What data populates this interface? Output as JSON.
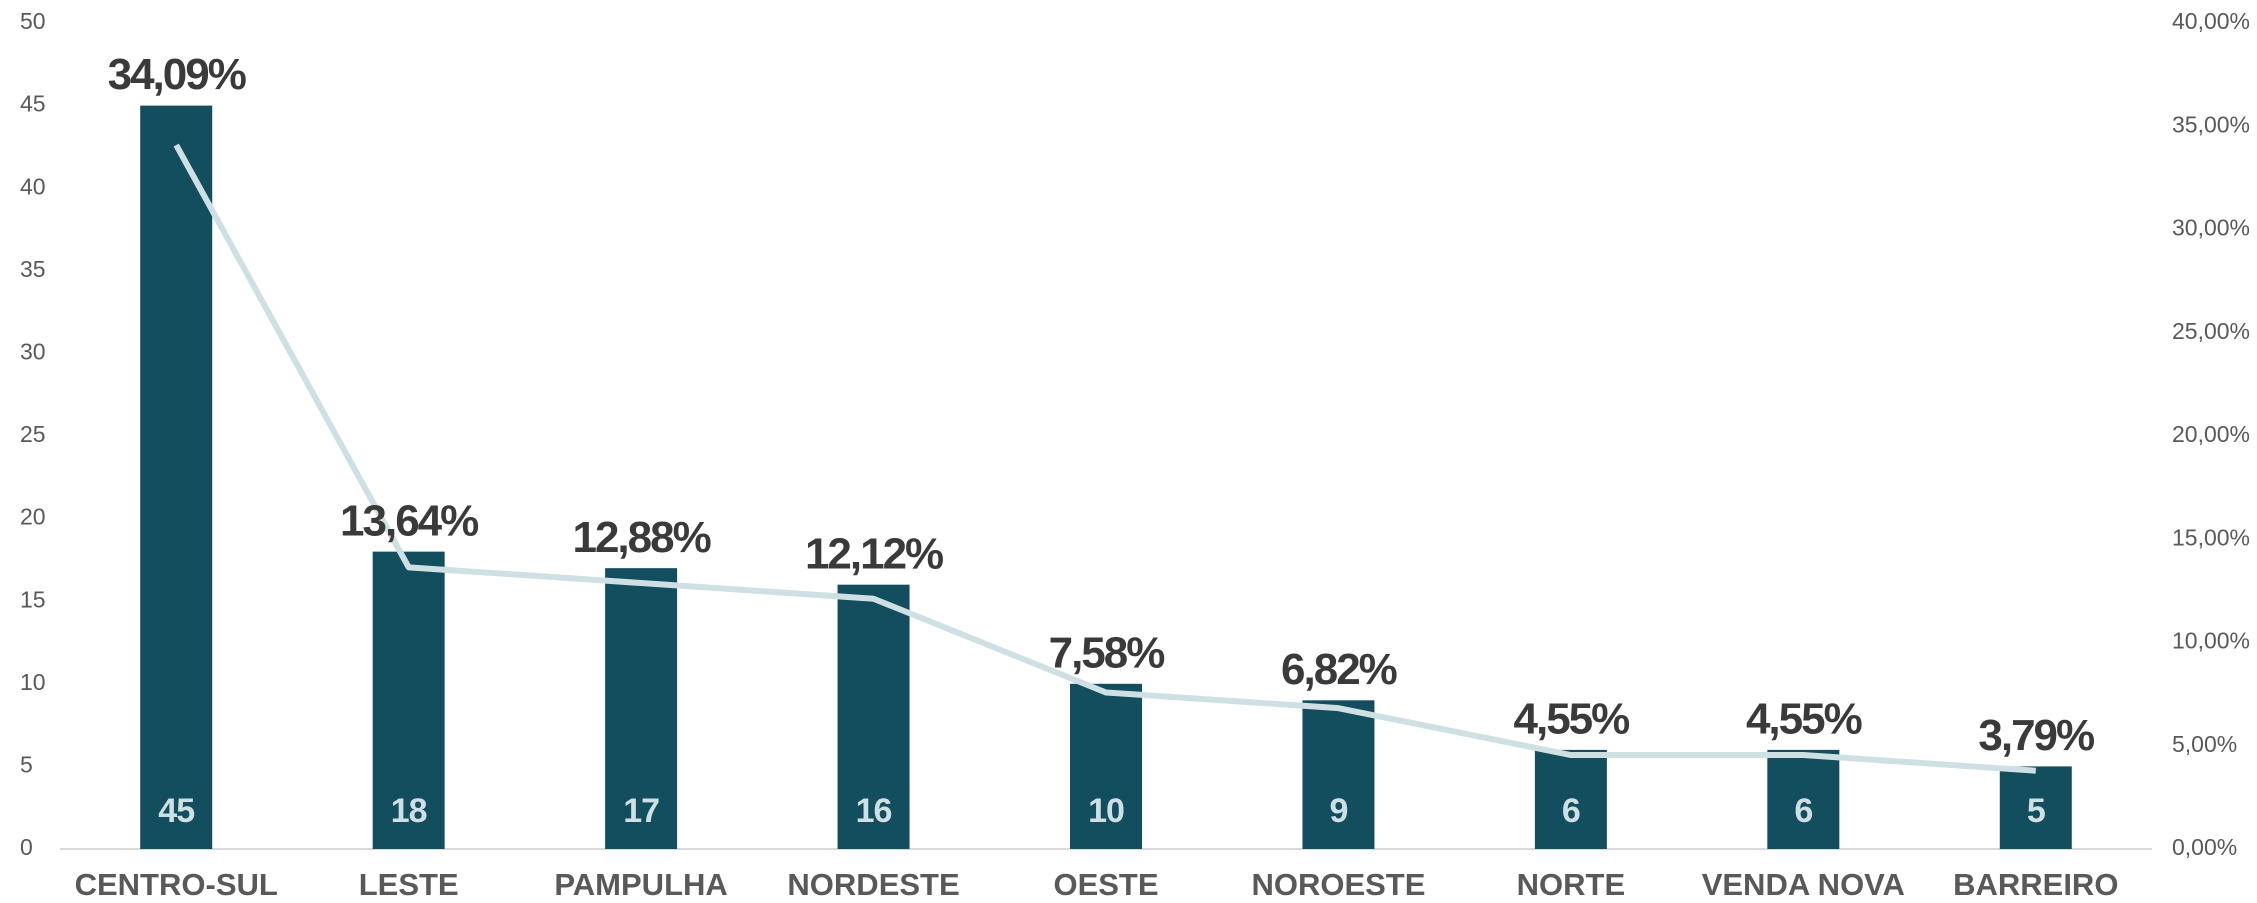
{
  "chart_data": {
    "type": "bar",
    "categories": [
      "CENTRO-SUL",
      "LESTE",
      "PAMPULHA",
      "NORDESTE",
      "OESTE",
      "NOROESTE",
      "NORTE",
      "VENDA NOVA",
      "BARREIRO"
    ],
    "series": [
      {
        "type": "bar",
        "color": "#134e5e",
        "label_color": "#cfe0e4",
        "values": [
          45,
          18,
          17,
          16,
          10,
          9,
          6,
          6,
          5
        ]
      },
      {
        "type": "line",
        "axis": "y2",
        "color": "#cfe0e4",
        "values": [
          34.09,
          13.64,
          12.88,
          12.12,
          7.58,
          6.82,
          4.55,
          4.55,
          3.79
        ],
        "value_labels": [
          "34,09%",
          "13,64%",
          "12,88%",
          "12,12%",
          "7,58%",
          "6,82%",
          "4,55%",
          "4,55%",
          "3,79%"
        ]
      }
    ],
    "ylim": [
      0,
      50
    ],
    "yticks": [
      0,
      5,
      10,
      15,
      20,
      25,
      30,
      35,
      40,
      45,
      50
    ],
    "y2lim": [
      0,
      40
    ],
    "y2ticks": [
      {
        "value": 0,
        "label": "0,00%"
      },
      {
        "value": 5,
        "label": "5,00%"
      },
      {
        "value": 10,
        "label": "10,00%"
      },
      {
        "value": 15,
        "label": "15,00%"
      },
      {
        "value": 20,
        "label": "20,00%"
      },
      {
        "value": 25,
        "label": "25,00%"
      },
      {
        "value": 30,
        "label": "30,00%"
      },
      {
        "value": 35,
        "label": "35,00%"
      },
      {
        "value": 40,
        "label": "40,00%"
      }
    ],
    "grid": false
  }
}
